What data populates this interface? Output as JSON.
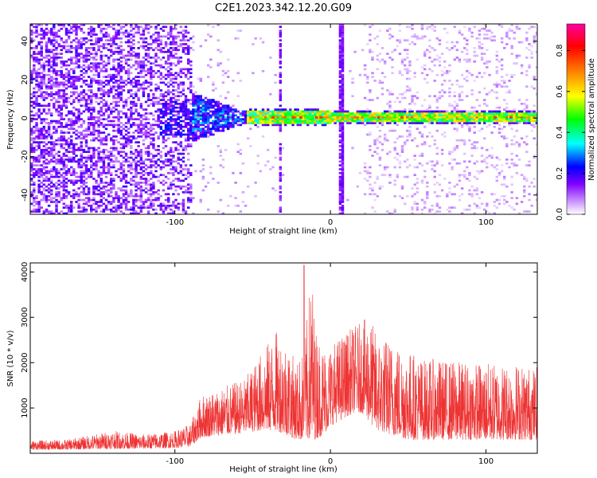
{
  "title": "C2E1.2023.342.12.20.G09",
  "chart_data": [
    {
      "type": "heatmap",
      "xlabel": "Height of straight line (km)",
      "ylabel": "Frequency (Hz)",
      "xlim": [
        -193,
        133
      ],
      "ylim": [
        -50,
        49
      ],
      "x_ticks": [
        -100,
        0,
        100
      ],
      "y_ticks": [
        -40,
        -20,
        0,
        20,
        40
      ],
      "colorbar": {
        "label": "Normalized spectral amplitude",
        "range": [
          0,
          0.93
        ],
        "ticks": [
          0.0,
          0.2,
          0.4,
          0.6,
          0.8
        ],
        "colors": [
          "#ffffff",
          "#8000ff",
          "#0000ff",
          "#00ffff",
          "#00ff00",
          "#ffff00",
          "#ff8000",
          "#ff0000",
          "#ff00a0"
        ]
      },
      "ridge": {
        "frequency": 0,
        "noisy_spread_region_km": [
          -193,
          -90
        ],
        "broad_band_region_km": [
          -110,
          -55
        ],
        "narrow_band_region_km": [
          -55,
          133
        ],
        "gap_regions_km": [
          [
            -90,
            -35
          ],
          [
            -30,
            5
          ]
        ],
        "vertical_stripes_km": [
          -33,
          6,
          7
        ]
      },
      "grid": false
    },
    {
      "type": "line",
      "xlabel": "Height of straight line (km)",
      "ylabel": "SNR (10 * v/v)",
      "xlim": [
        -193,
        133
      ],
      "ylim": [
        0,
        4200
      ],
      "x_ticks": [
        -100,
        0,
        100
      ],
      "y_ticks": [
        1000,
        2000,
        3000,
        4000
      ],
      "color": "#ee3333",
      "envelope": {
        "x": [
          -193,
          -170,
          -140,
          -120,
          -100,
          -90,
          -83,
          -70,
          -55,
          -45,
          -35,
          -28,
          -22,
          -17,
          -12,
          -10,
          -5,
          0,
          10,
          15,
          20,
          25,
          30,
          40,
          50,
          60,
          80,
          100,
          120,
          133
        ],
        "max": [
          280,
          300,
          500,
          420,
          500,
          650,
          1300,
          1450,
          1650,
          2200,
          2700,
          2500,
          2000,
          2300,
          4150,
          2800,
          2400,
          2400,
          2700,
          2800,
          2900,
          3050,
          2600,
          2500,
          2300,
          2100,
          2050,
          2000,
          2000,
          1900
        ],
        "min": [
          80,
          80,
          100,
          100,
          120,
          150,
          350,
          400,
          450,
          500,
          500,
          400,
          300,
          300,
          300,
          300,
          400,
          600,
          800,
          900,
          900,
          700,
          500,
          400,
          300,
          300,
          300,
          300,
          300,
          300
        ]
      },
      "grid": false
    }
  ]
}
